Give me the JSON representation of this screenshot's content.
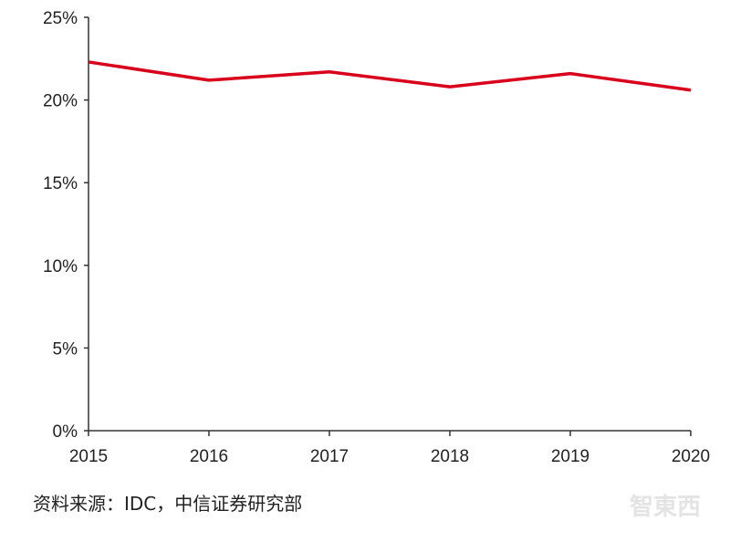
{
  "chart_data": {
    "type": "line",
    "title": "",
    "xlabel": "",
    "ylabel": "",
    "categories": [
      "2015",
      "2016",
      "2017",
      "2018",
      "2019",
      "2020"
    ],
    "series": [
      {
        "values": [
          22.3,
          21.2,
          21.7,
          20.8,
          21.6,
          20.6
        ],
        "color": "#d9001b"
      }
    ],
    "ylim": [
      0,
      25
    ],
    "yticks": [
      0,
      5,
      10,
      15,
      20,
      25
    ],
    "ytick_labels": [
      "0%",
      "5%",
      "10%",
      "15%",
      "20%",
      "25%"
    ],
    "grid": false,
    "legend": "none"
  },
  "source": "资料来源：IDC，中信证券研究部",
  "watermark": "智东西"
}
